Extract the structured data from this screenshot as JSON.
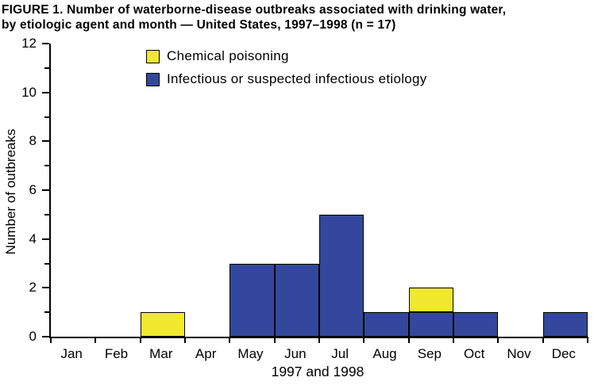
{
  "title": {
    "line1": "FIGURE 1.  Number of waterborne-disease outbreaks associated with drinking water,",
    "line2": "by etiologic agent and month — United States, 1997–1998 (n = 17)"
  },
  "chart_data": {
    "type": "bar",
    "stacked": true,
    "title": "FIGURE 1. Number of waterborne-disease outbreaks associated with drinking water, by etiologic agent and month — United States, 1997–1998 (n = 17)",
    "categories": [
      "Jan",
      "Feb",
      "Mar",
      "Apr",
      "May",
      "Jun",
      "Jul",
      "Aug",
      "Sep",
      "Oct",
      "Nov",
      "Dec"
    ],
    "series": [
      {
        "name": "Infectious or suspected infectious etiology",
        "color": "#33489c",
        "values": [
          0,
          0,
          0,
          0,
          3,
          3,
          5,
          1,
          1,
          1,
          0,
          1
        ]
      },
      {
        "name": "Chemical poisoning",
        "color": "#f0e92f",
        "values": [
          0,
          0,
          1,
          0,
          0,
          0,
          0,
          0,
          1,
          0,
          0,
          0
        ]
      }
    ],
    "legend": [
      {
        "label": "Chemical poisoning",
        "color": "#f0e92f"
      },
      {
        "label": "Infectious or suspected infectious etiology",
        "color": "#33489c"
      }
    ],
    "ylabel": "Number of outbreaks",
    "xlabel": "1997 and 1998",
    "ylim": [
      0,
      12
    ],
    "ytick_step": 2,
    "yminor_step": 1,
    "grid": false,
    "legend_position": "top-left-inside",
    "colors": {
      "axis": "#000000",
      "bar_outline": "#000000"
    }
  }
}
